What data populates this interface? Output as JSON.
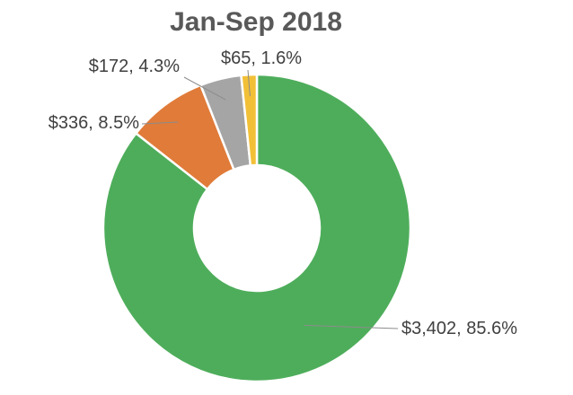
{
  "chart_data": {
    "type": "pie",
    "variant": "doughnut",
    "title": "Jan-Sep 2018",
    "legend": "none",
    "series": [
      {
        "values": [
          3402,
          336,
          172,
          65
        ],
        "percents": [
          85.6,
          8.5,
          4.3,
          1.6
        ],
        "labels": [
          "$3,402, 85.6%",
          "$336, 8.5%",
          "$172, 4.3%",
          "$65, 1.6%"
        ],
        "colors": [
          "#4EAD5B",
          "#E07B39",
          "#A5A5A5",
          "#F2C037"
        ]
      }
    ]
  }
}
